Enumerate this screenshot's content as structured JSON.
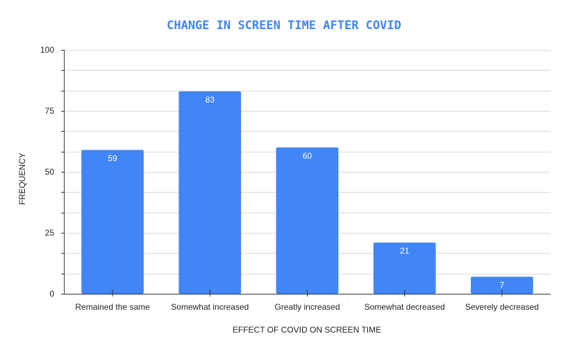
{
  "chart_data": {
    "type": "bar",
    "title": "CHANGE IN SCREEN TIME AFTER COVID",
    "xlabel": "EFFECT OF COVID ON SCREEN TIME",
    "ylabel": "FREQUENCY",
    "categories": [
      "Remained the same",
      "Somewhat increased",
      "Greatly increased",
      "Somewhat decreased",
      "Severely decreased"
    ],
    "values": [
      59,
      83,
      60,
      21,
      7
    ],
    "ylim": [
      0,
      100
    ],
    "yticks": [
      0,
      25,
      50,
      75,
      100
    ],
    "grid": true,
    "legend": "none",
    "colors": {
      "bar": "#4285f4",
      "title": "#4285f4",
      "grid": "#d9d9d9",
      "axis": "#333333"
    }
  }
}
